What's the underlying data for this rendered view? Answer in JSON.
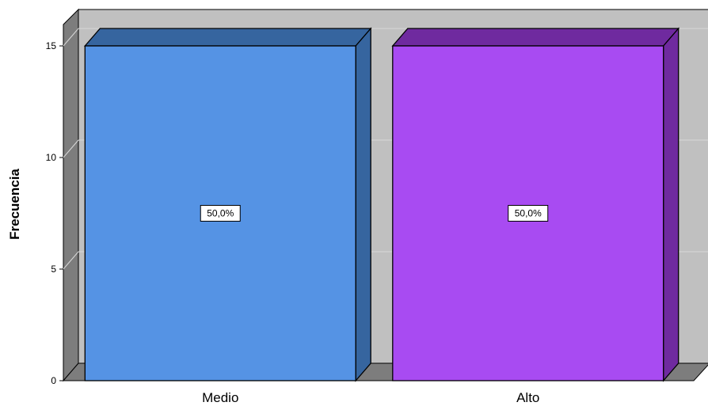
{
  "chart_data": {
    "type": "bar",
    "style": "3d",
    "categories": [
      "Medio",
      "Alto"
    ],
    "values": [
      15,
      15
    ],
    "data_labels": [
      "50,0%",
      "50,0%"
    ],
    "ylabel": "Frecuencia",
    "xlabel": "",
    "yticks": [
      0,
      5,
      10,
      15
    ],
    "ylim": [
      0,
      15
    ],
    "grid": true,
    "legend": "none"
  },
  "colors": {
    "bars": [
      {
        "front": "#5593e4",
        "top": "#36659f",
        "side": "#36659f"
      },
      {
        "front": "#a84bf2",
        "top": "#6f2a9f",
        "side": "#6f2a9f"
      }
    ],
    "back_wall": "#c0c0c0",
    "left_wall": "#7d7d7d",
    "floor": "#7d7d7d",
    "gridline": "#d9d9d9"
  }
}
